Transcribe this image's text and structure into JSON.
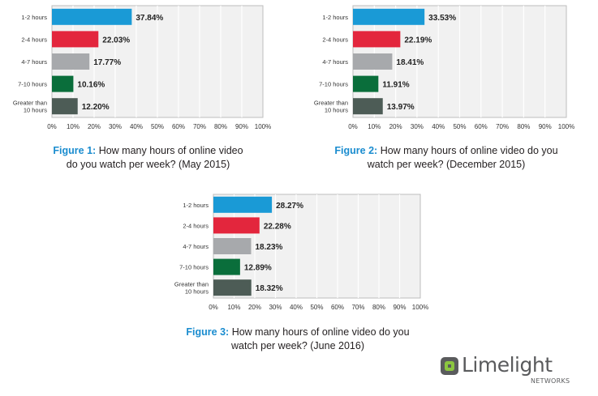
{
  "chart_data": [
    {
      "type": "bar",
      "orientation": "horizontal",
      "figure_label": "Figure 1:",
      "title": "How many hours of online video do you watch per week? (May 2015)",
      "title_lines": [
        "How many hours of online video",
        "do you watch per week? (May 2015)"
      ],
      "categories": [
        [
          "1-2 hours"
        ],
        [
          "2-4 hours"
        ],
        [
          "4-7 hours"
        ],
        [
          "7-10 hours"
        ],
        [
          "Greater than",
          "10 hours"
        ]
      ],
      "values": [
        37.84,
        22.03,
        17.77,
        10.16,
        12.2
      ],
      "value_labels": [
        "37.84%",
        "22.03%",
        "17.77%",
        "10.16%",
        "12.20%"
      ],
      "colors": [
        "#1a9ad6",
        "#e3263d",
        "#a7a9ac",
        "#0a6e3b",
        "#4d5c56"
      ],
      "xlim": [
        0,
        100
      ],
      "xticks": [
        "0%",
        "10%",
        "20%",
        "30%",
        "40%",
        "50%",
        "60%",
        "70%",
        "80%",
        "90%",
        "100%"
      ],
      "grid": true
    },
    {
      "type": "bar",
      "orientation": "horizontal",
      "figure_label": "Figure 2:",
      "title": "How many hours of online video do you watch per week? (December 2015)",
      "title_lines": [
        "How many hours of online video do you",
        "watch per week? (December 2015)"
      ],
      "categories": [
        [
          "1-2 hours"
        ],
        [
          "2-4 hours"
        ],
        [
          "4-7 hours"
        ],
        [
          "7-10 hours"
        ],
        [
          "Greater than",
          "10 hours"
        ]
      ],
      "values": [
        33.53,
        22.19,
        18.41,
        11.91,
        13.97
      ],
      "value_labels": [
        "33.53%",
        "22.19%",
        "18.41%",
        "11.91%",
        "13.97%"
      ],
      "colors": [
        "#1a9ad6",
        "#e3263d",
        "#a7a9ac",
        "#0a6e3b",
        "#4d5c56"
      ],
      "xlim": [
        0,
        100
      ],
      "xticks": [
        "0%",
        "10%",
        "20%",
        "30%",
        "40%",
        "50%",
        "60%",
        "70%",
        "80%",
        "90%",
        "100%"
      ],
      "grid": true
    },
    {
      "type": "bar",
      "orientation": "horizontal",
      "figure_label": "Figure 3:",
      "title": "How many hours of online video do you watch per week? (June 2016)",
      "title_lines": [
        "How many hours of online video do you",
        "watch per week? (June 2016)"
      ],
      "categories": [
        [
          "1-2 hours"
        ],
        [
          "2-4 hours"
        ],
        [
          "4-7 hours"
        ],
        [
          "7-10 hours"
        ],
        [
          "Greater than",
          "10 hours"
        ]
      ],
      "values": [
        28.27,
        22.28,
        18.23,
        12.89,
        18.32
      ],
      "value_labels": [
        "28.27%",
        "22.28%",
        "18.23%",
        "12.89%",
        "18.32%"
      ],
      "colors": [
        "#1a9ad6",
        "#e3263d",
        "#a7a9ac",
        "#0a6e3b",
        "#4d5c56"
      ],
      "xlim": [
        0,
        100
      ],
      "xticks": [
        "0%",
        "10%",
        "20%",
        "30%",
        "40%",
        "50%",
        "60%",
        "70%",
        "80%",
        "90%",
        "100%"
      ],
      "grid": true
    }
  ],
  "logo": {
    "name": "Limelight",
    "sub": "NETWORKS",
    "icon": "limelight-logo-icon",
    "color": "#5a5b5d",
    "accent": "#8cc63f"
  }
}
